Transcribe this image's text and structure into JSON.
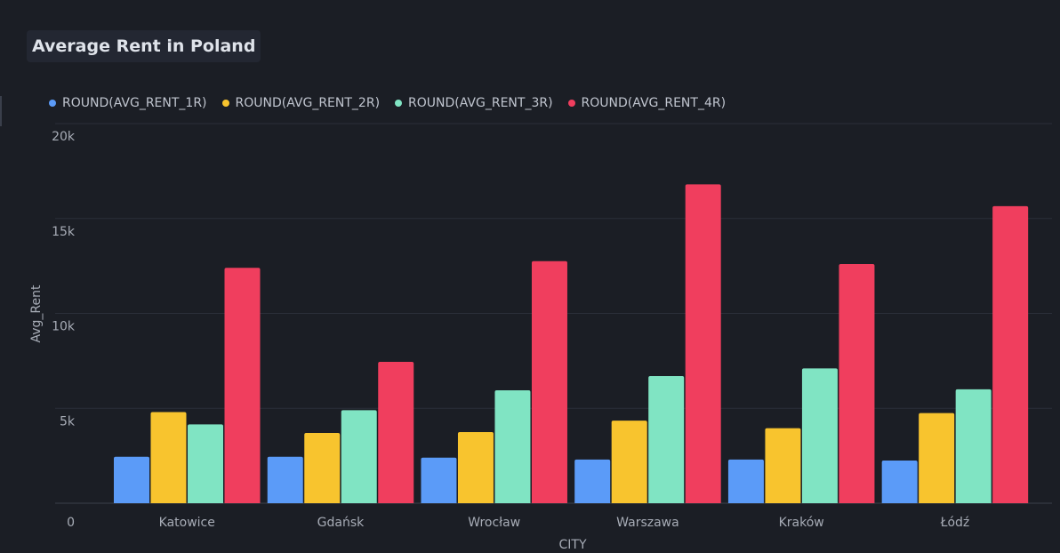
{
  "title": "Average Rent in Poland",
  "chart_data": {
    "type": "bar",
    "title": "Average Rent in Poland",
    "xlabel": "CITY",
    "ylabel": "Avg_Rent",
    "ylim": [
      0,
      20000
    ],
    "yticks": [
      "0",
      "5k",
      "10k",
      "15k",
      "20k"
    ],
    "grid": true,
    "legend_position": "top-left",
    "categories": [
      "Katowice",
      "Gdańsk",
      "Wrocław",
      "Warszawa",
      "Kraków",
      "Łódź"
    ],
    "series": [
      {
        "name": "ROUND(AVG_RENT_1R)",
        "color": "#5b9bf8",
        "values": [
          2450,
          2450,
          2400,
          2300,
          2300,
          2250
        ]
      },
      {
        "name": "ROUND(AVG_RENT_2R)",
        "color": "#f8c42e",
        "values": [
          4800,
          3700,
          3750,
          4350,
          3950,
          4750
        ]
      },
      {
        "name": "ROUND(AVG_RENT_3R)",
        "color": "#80e4c3",
        "values": [
          4150,
          4900,
          5950,
          6700,
          7100,
          6000
        ]
      },
      {
        "name": "ROUND(AVG_RENT_4R)",
        "color": "#f03e5e",
        "values": [
          12400,
          7450,
          12750,
          16800,
          12600,
          15650
        ]
      }
    ]
  }
}
